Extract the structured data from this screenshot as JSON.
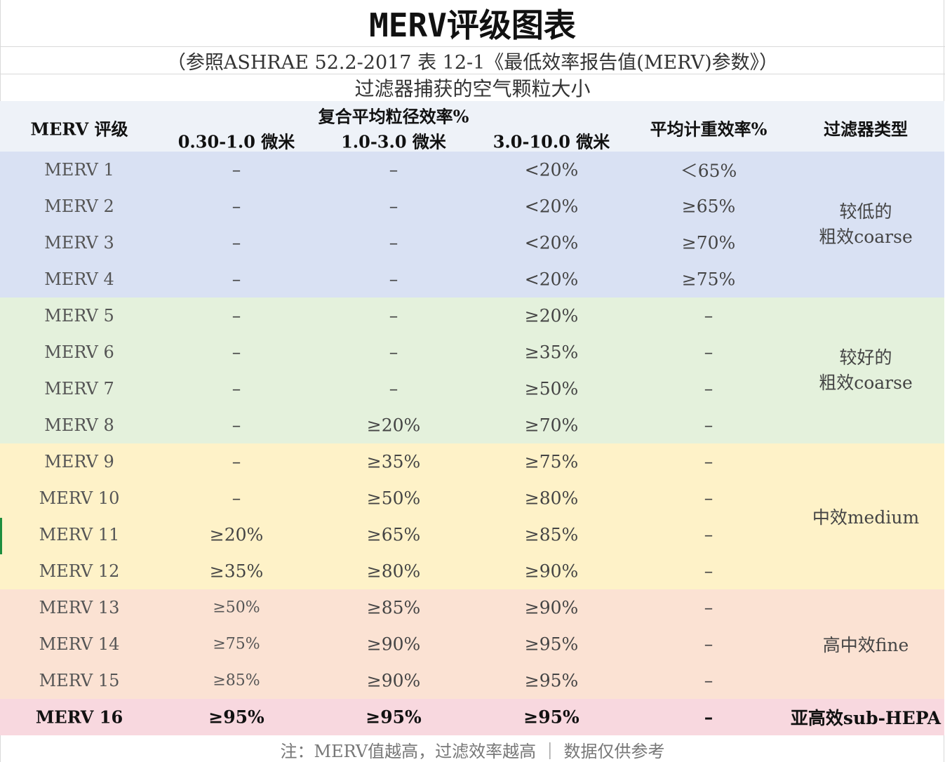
{
  "title": "MERV评级图表",
  "subtitle": "（参照ASHRAE 52.2-2017 表 12-1《最低效率报告值(MERV)参数》）",
  "caption": "过滤器捕获的空气颗粒大小",
  "header": {
    "rating": "MERV 评级",
    "group": "复合平均粒径效率%",
    "c1": "0.30-1.0 微米",
    "c2": "1.0-3.0 微米",
    "c3": "3.0-10.0 微米",
    "weight": "平均计重效率%",
    "type": "过滤器类型"
  },
  "rows": [
    {
      "rating": "MERV 1",
      "c1": "–",
      "c2": "–",
      "c3": "<20%",
      "weight": "＜65%"
    },
    {
      "rating": "MERV 2",
      "c1": "–",
      "c2": "–",
      "c3": "<20%",
      "weight": "≥65%"
    },
    {
      "rating": "MERV 3",
      "c1": "–",
      "c2": "–",
      "c3": "<20%",
      "weight": "≥70%"
    },
    {
      "rating": "MERV 4",
      "c1": "–",
      "c2": "–",
      "c3": "<20%",
      "weight": "≥75%"
    },
    {
      "rating": "MERV 5",
      "c1": "–",
      "c2": "–",
      "c3": "≥20%",
      "weight": "–"
    },
    {
      "rating": "MERV 6",
      "c1": "–",
      "c2": "–",
      "c3": "≥35%",
      "weight": "–"
    },
    {
      "rating": "MERV 7",
      "c1": "–",
      "c2": "–",
      "c3": "≥50%",
      "weight": "–"
    },
    {
      "rating": "MERV 8",
      "c1": "–",
      "c2": "≥20%",
      "c3": "≥70%",
      "weight": "–"
    },
    {
      "rating": "MERV 9",
      "c1": "–",
      "c2": "≥35%",
      "c3": "≥75%",
      "weight": "–"
    },
    {
      "rating": "MERV 10",
      "c1": "–",
      "c2": "≥50%",
      "c3": "≥80%",
      "weight": "–"
    },
    {
      "rating": "MERV 11",
      "c1": "≥20%",
      "c2": "≥65%",
      "c3": "≥85%",
      "weight": "–"
    },
    {
      "rating": "MERV 12",
      "c1": "≥35%",
      "c2": "≥80%",
      "c3": "≥90%",
      "weight": "–"
    },
    {
      "rating": "MERV 13",
      "c1": "≥50%",
      "c2": "≥85%",
      "c3": "≥90%",
      "weight": "–"
    },
    {
      "rating": "MERV 14",
      "c1": "≥75%",
      "c2": "≥90%",
      "c3": "≥95%",
      "weight": "–"
    },
    {
      "rating": "MERV 15",
      "c1": "≥85%",
      "c2": "≥90%",
      "c3": "≥95%",
      "weight": "–"
    },
    {
      "rating": "MERV 16",
      "c1": "≥95%",
      "c2": "≥95%",
      "c3": "≥95%",
      "weight": "–"
    }
  ],
  "types": [
    {
      "line1": "较低的",
      "line2": "粗效coarse"
    },
    {
      "line1": "较好的",
      "line2": "粗效coarse"
    },
    {
      "line1": "中效medium",
      "line2": ""
    },
    {
      "line1": "高中效fine",
      "line2": ""
    },
    {
      "line1": "亚高效sub-HEPA",
      "line2": ""
    }
  ],
  "colors": {
    "header_bg": "#eef2f8",
    "coarse_low": "#d9e1f3",
    "coarse_good": "#e4f1dc",
    "medium": "#fef2c8",
    "fine": "#fbe2d3",
    "sub_hepa": "#f8d8df"
  },
  "footer": "注：MERV值越高，过滤效率越高 ｜ 数据仅供参考"
}
